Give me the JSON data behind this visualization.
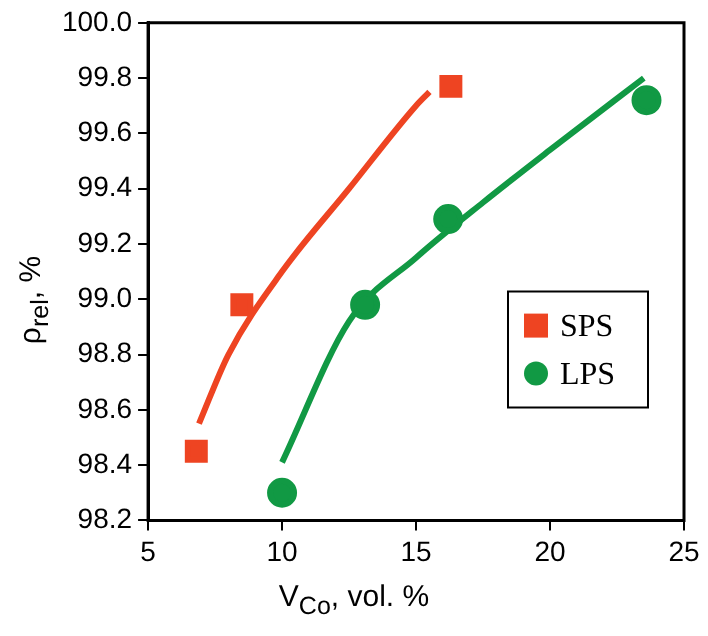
{
  "chart_data": {
    "type": "scatter",
    "xlabel": "V$_{Co}$, vol. %",
    "ylabel": "ρ$_{rel}$, %",
    "xlim": [
      5,
      25
    ],
    "xticks": [
      5,
      10,
      15,
      20,
      25
    ],
    "ylim": [
      98.2,
      100
    ],
    "yticks": [
      {
        "value": 98.2,
        "label": "98.2"
      },
      {
        "value": 98.4,
        "label": "98.4"
      },
      {
        "value": 98.6,
        "label": "98.6"
      },
      {
        "value": 98.8,
        "label": "98.8"
      },
      {
        "value": 99,
        "label": "99.0"
      },
      {
        "value": 99.2,
        "label": "99.2"
      },
      {
        "value": 99.4,
        "label": "99.4"
      },
      {
        "value": 99.6,
        "label": "99.6"
      },
      {
        "value": 99.8,
        "label": "99.8"
      },
      {
        "value": 100,
        "label": "100.0"
      }
    ],
    "grid": false,
    "legend": "right",
    "series": [
      {
        "name": "SPS",
        "color": "#ee4422",
        "marker": "square",
        "x": [
          6.8,
          8.5,
          16.3
        ],
        "values": [
          98.45,
          98.98,
          99.77
        ]
      },
      {
        "name": "LPS",
        "color": "#119944",
        "marker": "circle",
        "x": [
          10,
          13.1,
          16.2,
          23.6
        ],
        "values": [
          98.3,
          98.98,
          99.29,
          99.72
        ]
      },
      {
        "type": "line",
        "color": "#ee4422",
        "marker": "none",
        "x": [
          6.9,
          8,
          10,
          12.5,
          15,
          15.5
        ],
        "values": [
          98.55,
          98.8,
          99.1,
          99.4,
          99.7,
          99.75
        ]
      },
      {
        "type": "line",
        "color": "#119944",
        "marker": "none",
        "x": [
          10,
          12.5,
          15,
          17.5,
          20,
          23.5
        ],
        "values": [
          98.41,
          98.92,
          99.15,
          99.35,
          99.54,
          99.8
        ]
      }
    ]
  }
}
